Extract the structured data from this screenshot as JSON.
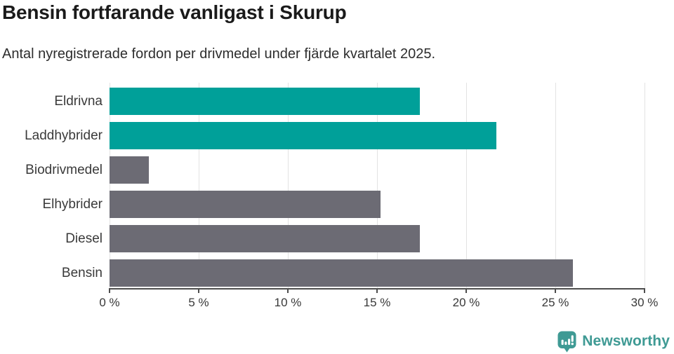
{
  "chart_data": {
    "type": "bar",
    "orientation": "horizontal",
    "title": "Bensin fortfarande vanligast i Skurup",
    "subtitle": "Antal nyregistrerade fordon per drivmedel under fjärde kvartalet 2025.",
    "categories": [
      "Eldrivna",
      "Laddhybrider",
      "Biodrivmedel",
      "Elhybrider",
      "Diesel",
      "Bensin"
    ],
    "values": [
      17.4,
      21.7,
      2.2,
      15.2,
      17.4,
      26.0
    ],
    "unit": "%",
    "bar_colors": [
      "#00a099",
      "#00a099",
      "#6c6b74",
      "#6c6b74",
      "#6c6b74",
      "#6c6b74"
    ],
    "xlabel": "",
    "ylabel": "",
    "xlim": [
      0,
      30
    ],
    "xticks": [
      0,
      5,
      10,
      15,
      20,
      25,
      30
    ],
    "xtick_labels": [
      "0 %",
      "5 %",
      "10 %",
      "15 %",
      "20 %",
      "25 %",
      "30 %"
    ],
    "grid": "vertical-gridlines-on",
    "legend": "none"
  },
  "footer": {
    "brand": "Newsworthy",
    "logo_icon": "speech-bubble-bar-chart-icon",
    "brand_color": "#3f9a94"
  },
  "colors": {
    "highlight_teal": "#00a099",
    "neutral_gray": "#6c6b74",
    "gridline": "#e3e3e3",
    "axis": "#4d4d4d",
    "title_text": "#1a1a1a",
    "subtitle_text": "#2d2d2d",
    "label_text": "#3a3a3a",
    "background": "#ffffff"
  }
}
